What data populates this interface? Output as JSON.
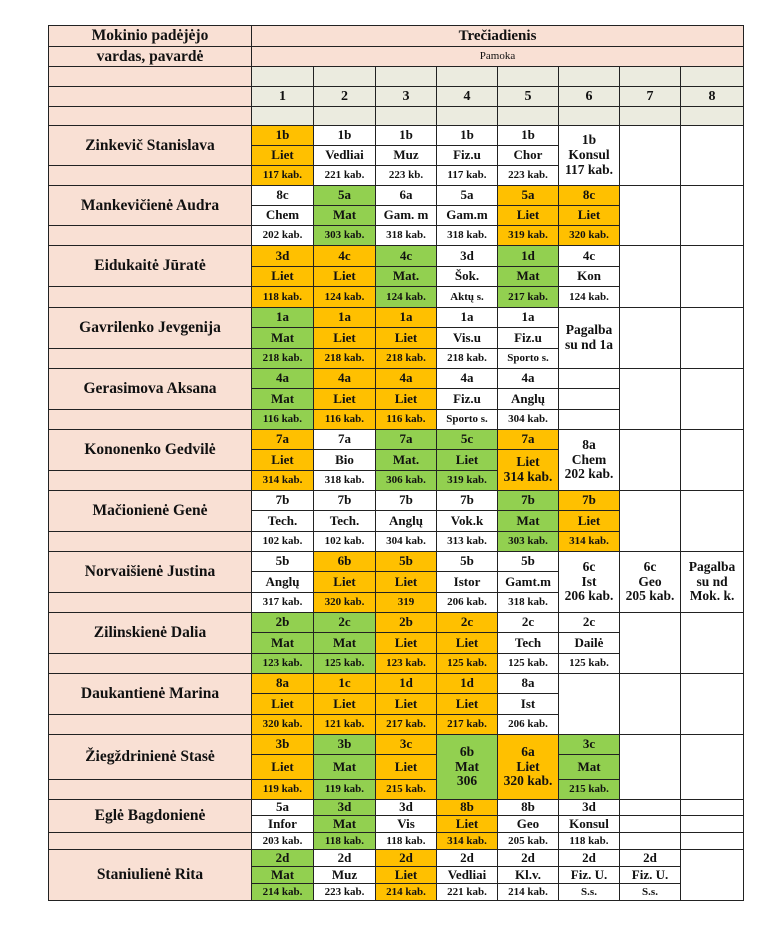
{
  "header": {
    "name_col_line1": "Mokinio padėjėjo",
    "name_col_line2": "vardas, pavardė",
    "day": "Trečiadienis",
    "lesson_label": "Pamoka",
    "lessons": [
      "1",
      "2",
      "3",
      "4",
      "5",
      "6",
      "7",
      "8"
    ]
  },
  "colors": {
    "o": "#ffc000",
    "g": "#92d050",
    "w": "#ffffff",
    "pink": "#f9e0d4",
    "gray": "#ebebdf"
  },
  "teachers": [
    {
      "name": "Zinkevič Stanislava",
      "cells": [
        [
          {
            "t": "1b",
            "c": "o"
          },
          {
            "t": "Liet",
            "c": "o"
          },
          {
            "t": "117 kab.",
            "c": "o"
          }
        ],
        [
          {
            "t": "1b"
          },
          {
            "t": "Vedliai"
          },
          {
            "t": "221 kab."
          }
        ],
        [
          {
            "t": "1b"
          },
          {
            "t": "Muz"
          },
          {
            "t": "223 kb."
          }
        ],
        [
          {
            "t": "1b"
          },
          {
            "t": "Fiz.u"
          },
          {
            "t": "117 kab."
          }
        ],
        [
          {
            "t": "1b"
          },
          {
            "t": "Chor"
          },
          {
            "t": "223 kab."
          }
        ],
        [
          {
            "t": "1b\nKonsul\n117 kab.",
            "s": 3
          }
        ],
        [
          {
            "t": "",
            "s": 3
          }
        ],
        [
          {
            "t": "",
            "s": 3
          }
        ]
      ]
    },
    {
      "name": "Mankevičienė Audra",
      "cells": [
        [
          {
            "t": "8c"
          },
          {
            "t": "Chem"
          },
          {
            "t": "202 kab."
          }
        ],
        [
          {
            "t": "5a",
            "c": "g"
          },
          {
            "t": "Mat",
            "c": "g"
          },
          {
            "t": "303 kab.",
            "c": "g"
          }
        ],
        [
          {
            "t": "6a"
          },
          {
            "t": "Gam. m"
          },
          {
            "t": "318 kab."
          }
        ],
        [
          {
            "t": "5a"
          },
          {
            "t": "Gam.m"
          },
          {
            "t": "318 kab."
          }
        ],
        [
          {
            "t": "5a",
            "c": "o"
          },
          {
            "t": "Liet",
            "c": "o"
          },
          {
            "t": "319 kab.",
            "c": "o"
          }
        ],
        [
          {
            "t": "8c",
            "c": "o"
          },
          {
            "t": "Liet",
            "c": "o"
          },
          {
            "t": "320 kab.",
            "c": "o"
          }
        ],
        [
          {
            "t": "",
            "s": 3
          }
        ],
        [
          {
            "t": "",
            "s": 3
          }
        ]
      ]
    },
    {
      "name": "Eidukaitė Jūratė",
      "cells": [
        [
          {
            "t": "3d",
            "c": "o"
          },
          {
            "t": "Liet",
            "c": "o"
          },
          {
            "t": "118 kab.",
            "c": "o"
          }
        ],
        [
          {
            "t": "4c",
            "c": "o"
          },
          {
            "t": "Liet",
            "c": "o"
          },
          {
            "t": "124 kab.",
            "c": "o"
          }
        ],
        [
          {
            "t": "4c",
            "c": "g"
          },
          {
            "t": "Mat.",
            "c": "g"
          },
          {
            "t": "124 kab.",
            "c": "g"
          }
        ],
        [
          {
            "t": "3d"
          },
          {
            "t": "Šok."
          },
          {
            "t": "Aktų s."
          }
        ],
        [
          {
            "t": "1d",
            "c": "g"
          },
          {
            "t": "Mat",
            "c": "g"
          },
          {
            "t": "217 kab.",
            "c": "g"
          }
        ],
        [
          {
            "t": "4c"
          },
          {
            "t": "Kon"
          },
          {
            "t": "124 kab."
          }
        ],
        [
          {
            "t": "",
            "s": 3
          }
        ],
        [
          {
            "t": "",
            "s": 3
          }
        ]
      ]
    },
    {
      "name": "Gavrilenko Jevgenija",
      "cells": [
        [
          {
            "t": "1a",
            "c": "g"
          },
          {
            "t": "Mat",
            "c": "g"
          },
          {
            "t": "218 kab.",
            "c": "g"
          }
        ],
        [
          {
            "t": "1a",
            "c": "o"
          },
          {
            "t": "Liet",
            "c": "o"
          },
          {
            "t": "218 kab.",
            "c": "o"
          }
        ],
        [
          {
            "t": "1a",
            "c": "o"
          },
          {
            "t": "Liet",
            "c": "o"
          },
          {
            "t": "218 kab.",
            "c": "o"
          }
        ],
        [
          {
            "t": "1a"
          },
          {
            "t": "Vis.u"
          },
          {
            "t": "218 kab."
          }
        ],
        [
          {
            "t": "1a"
          },
          {
            "t": "Fiz.u"
          },
          {
            "t": "Sporto s."
          }
        ],
        [
          {
            "t": "Pagalba\nsu nd 1a",
            "s": 3
          }
        ],
        [
          {
            "t": "",
            "s": 3
          }
        ],
        [
          {
            "t": "",
            "s": 3
          }
        ]
      ]
    },
    {
      "name": "Gerasimova Aksana",
      "cells": [
        [
          {
            "t": "4a",
            "c": "g"
          },
          {
            "t": "Mat",
            "c": "g"
          },
          {
            "t": "116 kab.",
            "c": "g"
          }
        ],
        [
          {
            "t": "4a",
            "c": "o"
          },
          {
            "t": "Liet",
            "c": "o"
          },
          {
            "t": "116 kab.",
            "c": "o"
          }
        ],
        [
          {
            "t": "4a",
            "c": "o"
          },
          {
            "t": "Liet",
            "c": "o"
          },
          {
            "t": "116 kab.",
            "c": "o"
          }
        ],
        [
          {
            "t": "4a"
          },
          {
            "t": "Fiz.u"
          },
          {
            "t": "Sporto s."
          }
        ],
        [
          {
            "t": "4a"
          },
          {
            "t": "Anglų"
          },
          {
            "t": "304 kab."
          }
        ],
        [
          {
            "t": ""
          },
          {
            "t": ""
          },
          {
            "t": ""
          }
        ],
        [
          {
            "t": "",
            "s": 3
          }
        ],
        [
          {
            "t": "",
            "s": 3
          }
        ]
      ]
    },
    {
      "name": "Kononenko Gedvilė",
      "cells": [
        [
          {
            "t": "7a",
            "c": "o"
          },
          {
            "t": "Liet",
            "c": "o"
          },
          {
            "t": "314 kab.",
            "c": "o"
          }
        ],
        [
          {
            "t": "7a"
          },
          {
            "t": "Bio"
          },
          {
            "t": "318 kab."
          }
        ],
        [
          {
            "t": "7a",
            "c": "g"
          },
          {
            "t": "Mat.",
            "c": "g"
          },
          {
            "t": "306 kab.",
            "c": "g"
          }
        ],
        [
          {
            "t": "5c",
            "c": "g"
          },
          {
            "t": "Liet",
            "c": "g"
          },
          {
            "t": "319 kab.",
            "c": "g"
          }
        ],
        [
          {
            "t": "7a",
            "c": "o"
          },
          {
            "t": "Liet\n314 kab.",
            "c": "o",
            "s": 2
          }
        ],
        [
          {
            "t": "8a\nChem\n202 kab.",
            "s": 3
          }
        ],
        [
          {
            "t": "",
            "s": 3
          }
        ],
        [
          {
            "t": "",
            "s": 3
          }
        ]
      ]
    },
    {
      "name": "Mačionienė Genė",
      "cells": [
        [
          {
            "t": "7b"
          },
          {
            "t": "Tech."
          },
          {
            "t": "102 kab."
          }
        ],
        [
          {
            "t": "7b"
          },
          {
            "t": "Tech."
          },
          {
            "t": "102 kab."
          }
        ],
        [
          {
            "t": "7b"
          },
          {
            "t": "Anglų"
          },
          {
            "t": "304 kab."
          }
        ],
        [
          {
            "t": "7b"
          },
          {
            "t": "Vok.k"
          },
          {
            "t": "313 kab."
          }
        ],
        [
          {
            "t": "7b",
            "c": "g"
          },
          {
            "t": "Mat",
            "c": "g"
          },
          {
            "t": "303 kab.",
            "c": "g"
          }
        ],
        [
          {
            "t": "7b",
            "c": "o"
          },
          {
            "t": "Liet",
            "c": "o"
          },
          {
            "t": "314 kab.",
            "c": "o"
          }
        ],
        [
          {
            "t": "",
            "s": 3
          }
        ],
        [
          {
            "t": "",
            "s": 3
          }
        ]
      ]
    },
    {
      "name": "Norvaišienė Justina",
      "cells": [
        [
          {
            "t": "5b"
          },
          {
            "t": "Anglų"
          },
          {
            "t": "317 kab."
          }
        ],
        [
          {
            "t": "6b",
            "c": "o"
          },
          {
            "t": "Liet",
            "c": "o"
          },
          {
            "t": "320 kab.",
            "c": "o"
          }
        ],
        [
          {
            "t": "5b",
            "c": "o"
          },
          {
            "t": "Liet",
            "c": "o"
          },
          {
            "t": "319",
            "c": "o"
          }
        ],
        [
          {
            "t": "5b"
          },
          {
            "t": "Istor"
          },
          {
            "t": "206 kab."
          }
        ],
        [
          {
            "t": "5b"
          },
          {
            "t": "Gamt.m"
          },
          {
            "t": "318 kab."
          }
        ],
        [
          {
            "t": "6c\nIst\n206 kab.",
            "s": 3
          }
        ],
        [
          {
            "t": "6c\nGeo\n205 kab.",
            "s": 3
          }
        ],
        [
          {
            "t": "Pagalba\nsu nd\nMok. k.",
            "s": 3
          }
        ]
      ]
    },
    {
      "name": "Zilinskienė Dalia",
      "cells": [
        [
          {
            "t": "2b",
            "c": "g"
          },
          {
            "t": "Mat",
            "c": "g"
          },
          {
            "t": "123 kab.",
            "c": "g"
          }
        ],
        [
          {
            "t": "2c",
            "c": "g"
          },
          {
            "t": "Mat",
            "c": "g"
          },
          {
            "t": "125 kab.",
            "c": "g"
          }
        ],
        [
          {
            "t": "2b",
            "c": "o"
          },
          {
            "t": "Liet",
            "c": "o"
          },
          {
            "t": "123 kab.",
            "c": "o"
          }
        ],
        [
          {
            "t": "2c",
            "c": "o"
          },
          {
            "t": "Liet",
            "c": "o"
          },
          {
            "t": "125 kab.",
            "c": "o"
          }
        ],
        [
          {
            "t": "2c"
          },
          {
            "t": "Tech"
          },
          {
            "t": "125 kab."
          }
        ],
        [
          {
            "t": "2c"
          },
          {
            "t": "Dailė"
          },
          {
            "t": "125 kab."
          }
        ],
        [
          {
            "t": "",
            "s": 3
          }
        ],
        [
          {
            "t": "",
            "s": 3
          }
        ]
      ]
    },
    {
      "name": "Daukantienė Marina",
      "cells": [
        [
          {
            "t": "8a",
            "c": "o"
          },
          {
            "t": "Liet",
            "c": "o"
          },
          {
            "t": "320 kab.",
            "c": "o"
          }
        ],
        [
          {
            "t": "1c",
            "c": "o"
          },
          {
            "t": "Liet",
            "c": "o"
          },
          {
            "t": "121 kab.",
            "c": "o"
          }
        ],
        [
          {
            "t": "1d",
            "c": "o"
          },
          {
            "t": "Liet",
            "c": "o"
          },
          {
            "t": "217 kab.",
            "c": "o"
          }
        ],
        [
          {
            "t": "1d",
            "c": "o"
          },
          {
            "t": "Liet",
            "c": "o"
          },
          {
            "t": "217 kab.",
            "c": "o"
          }
        ],
        [
          {
            "t": "8a"
          },
          {
            "t": "Ist"
          },
          {
            "t": "206 kab."
          }
        ],
        [
          {
            "t": "",
            "s": 3
          }
        ],
        [
          {
            "t": "",
            "s": 3
          }
        ],
        [
          {
            "t": "",
            "s": 3
          }
        ]
      ]
    },
    {
      "name": "Žiegždrinienė Stasė",
      "cells": [
        [
          {
            "t": "3b",
            "c": "o"
          },
          {
            "t": "Liet",
            "c": "o"
          },
          {
            "t": "119 kab.",
            "c": "o"
          }
        ],
        [
          {
            "t": "3b",
            "c": "g"
          },
          {
            "t": "Mat",
            "c": "g"
          },
          {
            "t": "119 kab.",
            "c": "g"
          }
        ],
        [
          {
            "t": "3c",
            "c": "o"
          },
          {
            "t": "Liet",
            "c": "o"
          },
          {
            "t": "215 kab.",
            "c": "o"
          }
        ],
        [
          {
            "t": "6b\nMat\n306",
            "c": "g",
            "s": 3
          }
        ],
        [
          {
            "t": "6a\nLiet\n320 kab.",
            "c": "o",
            "s": 3
          }
        ],
        [
          {
            "t": "3c",
            "c": "g"
          },
          {
            "t": "Mat",
            "c": "g"
          },
          {
            "t": "215 kab.",
            "c": "g"
          }
        ],
        [
          {
            "t": "",
            "s": 3
          }
        ],
        [
          {
            "t": "",
            "s": 3
          }
        ]
      ]
    },
    {
      "name": "Eglė Bagdonienė",
      "cells": [
        [
          {
            "t": "5a"
          },
          {
            "t": "Infor"
          },
          {
            "t": "203 kab."
          }
        ],
        [
          {
            "t": "3d",
            "c": "g"
          },
          {
            "t": "Mat",
            "c": "g"
          },
          {
            "t": "118 kab.",
            "c": "g"
          }
        ],
        [
          {
            "t": "3d"
          },
          {
            "t": "Vis"
          },
          {
            "t": "118 kab."
          }
        ],
        [
          {
            "t": "8b",
            "c": "o"
          },
          {
            "t": "Liet",
            "c": "o"
          },
          {
            "t": "314 kab.",
            "c": "o"
          }
        ],
        [
          {
            "t": "8b"
          },
          {
            "t": "Geo"
          },
          {
            "t": "205 kab."
          }
        ],
        [
          {
            "t": "3d"
          },
          {
            "t": "Konsul"
          },
          {
            "t": "118 kab."
          }
        ],
        [
          {
            "t": ""
          },
          {
            "t": ""
          },
          {
            "t": ""
          }
        ],
        [
          {
            "t": ""
          },
          {
            "t": ""
          },
          {
            "t": ""
          }
        ]
      ]
    },
    {
      "name": "Staniulienė Rita",
      "cells": [
        [
          {
            "t": "2d",
            "c": "g"
          },
          {
            "t": "Mat",
            "c": "g"
          },
          {
            "t": "214 kab.",
            "c": "g"
          }
        ],
        [
          {
            "t": "2d"
          },
          {
            "t": "Muz"
          },
          {
            "t": "223 kab."
          }
        ],
        [
          {
            "t": "2d",
            "c": "o"
          },
          {
            "t": "Liet",
            "c": "o"
          },
          {
            "t": "214 kab.",
            "c": "o"
          }
        ],
        [
          {
            "t": "2d"
          },
          {
            "t": "Vedliai"
          },
          {
            "t": "221 kab."
          }
        ],
        [
          {
            "t": "2d"
          },
          {
            "t": "Kl.v."
          },
          {
            "t": "214 kab."
          }
        ],
        [
          {
            "t": "2d"
          },
          {
            "t": "Fiz. U."
          },
          {
            "t": "S.s."
          }
        ],
        [
          {
            "t": "2d"
          },
          {
            "t": "Fiz. U."
          },
          {
            "t": "S.s."
          }
        ],
        [
          {
            "t": "",
            "s": 3
          }
        ]
      ]
    }
  ]
}
